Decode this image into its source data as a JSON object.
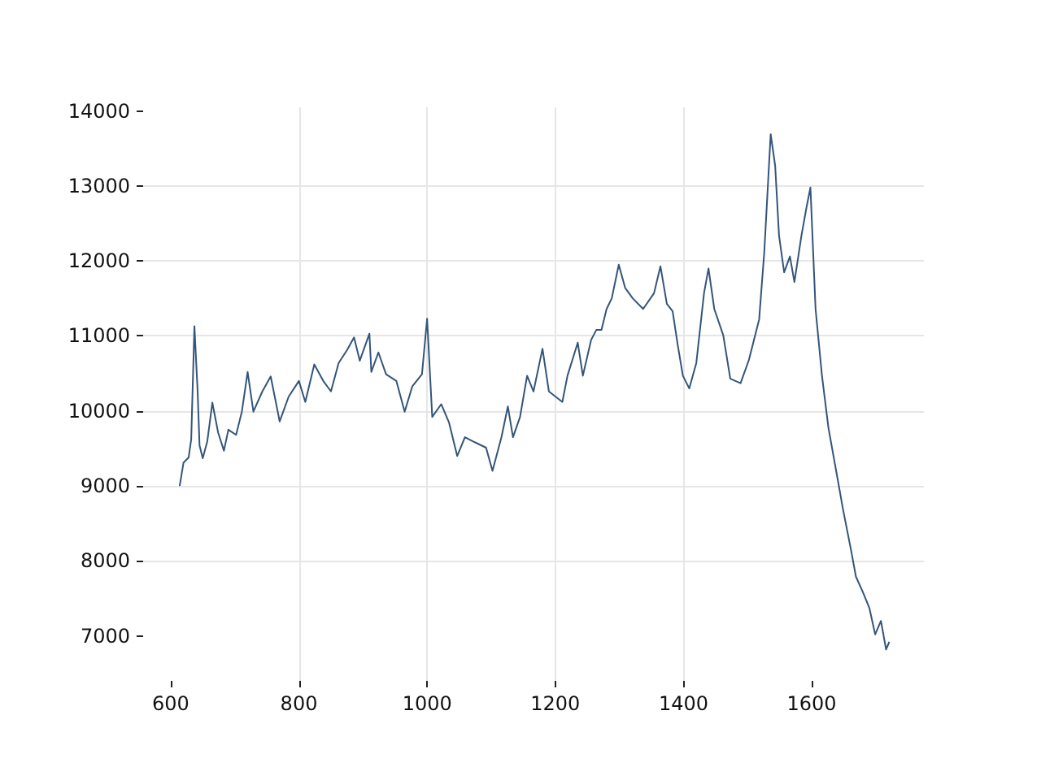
{
  "chart_data": {
    "type": "line",
    "xlim": [
      557,
      1775
    ],
    "ylim": [
      6400,
      14050
    ],
    "xticks": [
      600,
      800,
      1000,
      1200,
      1400,
      1600
    ],
    "yticks": [
      7000,
      8000,
      9000,
      10000,
      11000,
      12000,
      13000,
      14000
    ],
    "grid": true,
    "line_style": "solid",
    "marker": "none",
    "x": [
      614,
      620,
      628,
      632,
      637,
      642,
      645,
      650,
      657,
      665,
      674,
      683,
      690,
      702,
      711,
      720,
      729,
      743,
      756,
      770,
      784,
      800,
      810,
      824,
      838,
      850,
      862,
      875,
      886,
      895,
      910,
      913,
      924,
      936,
      952,
      965,
      977,
      992,
      1000,
      1008,
      1022,
      1034,
      1047,
      1059,
      1075,
      1092,
      1102,
      1116,
      1126,
      1134,
      1145,
      1156,
      1166,
      1180,
      1190,
      1211,
      1219,
      1235,
      1243,
      1256,
      1264,
      1272,
      1280,
      1288,
      1299,
      1309,
      1321,
      1337,
      1354,
      1364,
      1374,
      1383,
      1391,
      1399,
      1409,
      1420,
      1432,
      1439,
      1448,
      1462,
      1473,
      1489,
      1502,
      1518,
      1526,
      1536,
      1543,
      1549,
      1557,
      1566,
      1573,
      1584,
      1592,
      1598,
      1606,
      1616,
      1626,
      1639,
      1649,
      1661,
      1669,
      1680,
      1690,
      1699,
      1708,
      1716,
      1721
    ],
    "series": [
      {
        "color": "#34557a",
        "values": [
          9000,
          9310,
          9380,
          9620,
          11130,
          10260,
          9540,
          9370,
          9590,
          10110,
          9710,
          9470,
          9750,
          9680,
          9990,
          10520,
          9990,
          10260,
          10460,
          9860,
          10190,
          10400,
          10120,
          10620,
          10400,
          10260,
          10640,
          10810,
          10980,
          10670,
          11030,
          10520,
          10780,
          10490,
          10400,
          9990,
          10330,
          10490,
          11230,
          9920,
          10090,
          9850,
          9400,
          9650,
          9580,
          9510,
          9200,
          9650,
          10060,
          9650,
          9920,
          10470,
          10260,
          10830,
          10260,
          10120,
          10470,
          10910,
          10470,
          10950,
          11080,
          11080,
          11360,
          11500,
          11950,
          11640,
          11500,
          11360,
          11570,
          11930,
          11430,
          11330,
          10880,
          10470,
          10300,
          10640,
          11570,
          11900,
          11360,
          11010,
          10430,
          10370,
          10680,
          11220,
          12120,
          13690,
          13270,
          12340,
          11850,
          12060,
          11720,
          12340,
          12720,
          12980,
          11360,
          10470,
          9780,
          9160,
          8680,
          8160,
          7790,
          7580,
          7370,
          7020,
          7200,
          6820,
          6920
        ]
      }
    ]
  }
}
